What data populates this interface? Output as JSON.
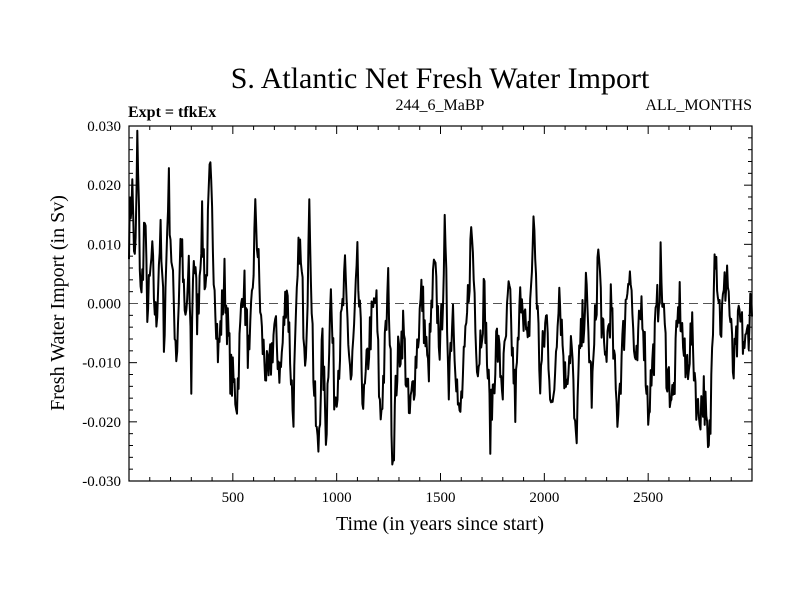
{
  "header": {
    "experiment": "Expt = tfkEx",
    "run": "244_6_MaBP",
    "months": "ALL_MONTHS"
  },
  "chart_data": {
    "type": "line",
    "title": "S. Atlantic Net Fresh Water Import",
    "xlabel": "Time (in years since start)",
    "ylabel": "Fresh Water Import (in Sv)",
    "xlim": [
      0,
      3000
    ],
    "ylim": [
      -0.03,
      0.03
    ],
    "x_ticks": [
      500,
      1000,
      1500,
      2000,
      2500
    ],
    "x_tick_labels": [
      "500",
      "1000",
      "1500",
      "2000",
      "2500"
    ],
    "y_ticks": [
      -0.03,
      -0.02,
      -0.01,
      0.0,
      0.01,
      0.02,
      0.03
    ],
    "y_tick_labels": [
      "-0.030",
      "-0.020",
      "-0.010",
      "0.000",
      "0.010",
      "0.020",
      "0.030"
    ],
    "reference_line": {
      "y": 0.0,
      "style": "dashed"
    },
    "grid": false,
    "series": [
      {
        "color": "#000000",
        "x": [
          0,
          15,
          30,
          40,
          50,
          60,
          75,
          90,
          110,
          130,
          150,
          170,
          190,
          210,
          230,
          250,
          270,
          290,
          300,
          310,
          330,
          350,
          370,
          390,
          410,
          430,
          460,
          490,
          520,
          550,
          580,
          610,
          640,
          670,
          700,
          730,
          760,
          790,
          820,
          850,
          870,
          890,
          910,
          930,
          950,
          970,
          990,
          1010,
          1040,
          1070,
          1100,
          1130,
          1160,
          1190,
          1210,
          1230,
          1250,
          1270,
          1290,
          1320,
          1350,
          1380,
          1410,
          1440,
          1470,
          1500,
          1520,
          1540,
          1560,
          1590,
          1620,
          1650,
          1680,
          1710,
          1740,
          1770,
          1800,
          1830,
          1860,
          1890,
          1920,
          1950,
          1980,
          2010,
          2040,
          2070,
          2100,
          2130,
          2150,
          2170,
          2200,
          2230,
          2260,
          2290,
          2320,
          2350,
          2380,
          2410,
          2440,
          2470,
          2500,
          2530,
          2560,
          2590,
          2620,
          2650,
          2680,
          2710,
          2740,
          2770,
          2790,
          2800,
          2820,
          2850,
          2880,
          2910,
          2940,
          2970,
          3000
        ],
        "y": [
          0.012,
          0.02,
          0.004,
          0.028,
          0.01,
          0.0,
          0.015,
          -0.002,
          0.008,
          -0.004,
          0.012,
          -0.006,
          0.021,
          0.003,
          -0.009,
          0.012,
          -0.004,
          0.005,
          -0.013,
          0.01,
          -0.003,
          0.014,
          0.002,
          0.022,
          0.006,
          -0.009,
          0.004,
          -0.012,
          -0.016,
          0.005,
          -0.011,
          0.016,
          -0.006,
          -0.014,
          -0.004,
          -0.012,
          0.004,
          -0.019,
          0.011,
          -0.008,
          0.016,
          -0.014,
          -0.026,
          -0.007,
          -0.022,
          0.003,
          -0.016,
          -0.01,
          0.004,
          -0.014,
          0.006,
          -0.018,
          -0.005,
          0.001,
          -0.02,
          -0.01,
          0.004,
          -0.027,
          -0.011,
          -0.004,
          -0.02,
          -0.01,
          0.002,
          -0.012,
          0.006,
          -0.008,
          0.011,
          -0.012,
          0.0,
          -0.021,
          -0.008,
          0.013,
          -0.011,
          0.002,
          -0.021,
          -0.006,
          -0.014,
          0.002,
          -0.017,
          0.004,
          -0.009,
          0.014,
          -0.013,
          -0.002,
          -0.02,
          0.004,
          -0.013,
          -0.006,
          -0.025,
          -0.009,
          0.002,
          -0.016,
          0.009,
          -0.011,
          0.0,
          -0.019,
          -0.006,
          0.008,
          -0.013,
          0.001,
          -0.018,
          -0.007,
          0.006,
          -0.011,
          -0.017,
          0.001,
          -0.012,
          -0.005,
          -0.019,
          -0.015,
          -0.027,
          -0.02,
          0.012,
          -0.004,
          0.006,
          -0.012,
          -0.003,
          -0.008,
          0.002
        ]
      }
    ]
  }
}
